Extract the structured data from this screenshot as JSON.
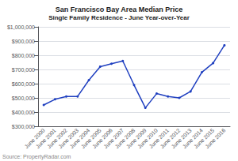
{
  "chart_data": {
    "type": "line",
    "title": "San Francisco Bay Area Median Price",
    "subtitle": "Single Family Residence - June Year-over-Year",
    "categories": [
      "June 2000",
      "June 2001",
      "June 2002",
      "June 2003",
      "June 2004",
      "June 2005",
      "June 2006",
      "June 2007",
      "June 2008",
      "June 2009",
      "June 2010",
      "June 2011",
      "June 2012",
      "June 2013",
      "June 2014",
      "June 2015",
      "June 2016"
    ],
    "values": [
      450000,
      490000,
      510000,
      510000,
      625000,
      720000,
      740000,
      760000,
      590000,
      430000,
      530000,
      510000,
      500000,
      545000,
      680000,
      745000,
      870000
    ],
    "color": "#2040c0",
    "marker": "circle",
    "ylim": [
      300000,
      1000000
    ],
    "yticks": [
      {
        "value": 300000,
        "label": "$300,000"
      },
      {
        "value": 400000,
        "label": "$400,000"
      },
      {
        "value": 500000,
        "label": "$500,000"
      },
      {
        "value": 600000,
        "label": "$600,000"
      },
      {
        "value": 700000,
        "label": "$700,000"
      },
      {
        "value": 800000,
        "label": "$800,000"
      },
      {
        "value": 900000,
        "label": "$900,000"
      },
      {
        "value": 1000000,
        "label": "$1,000,000"
      }
    ],
    "grid": true,
    "annotations": [
      "Source: PropertyRadar.com"
    ]
  }
}
